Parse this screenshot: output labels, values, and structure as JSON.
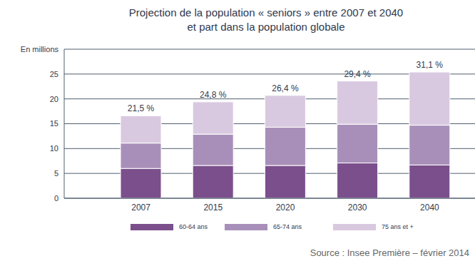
{
  "chart_data": {
    "type": "bar",
    "title": "Projection de la population « seniors » entre 2007 et 2040\net part dans la population globale",
    "categories": [
      "2007",
      "2015",
      "2020",
      "2030",
      "2040"
    ],
    "series": [
      {
        "name": "60-64 ans",
        "color": "#7b4f8c",
        "values": [
          6.0,
          6.6,
          6.6,
          7.1,
          6.7
        ]
      },
      {
        "name": "65-74 ans",
        "color": "#a88fb9",
        "values": [
          5.1,
          6.3,
          7.7,
          7.8,
          8.0
        ]
      },
      {
        "name": "75 ans et +",
        "color": "#d9c9e0",
        "values": [
          5.5,
          6.5,
          6.4,
          8.7,
          10.7
        ]
      }
    ],
    "annotations": [
      "21,5 %",
      "24,8 %",
      "26,4 %",
      "29,4 %",
      "31,1 %"
    ],
    "stacked": true,
    "ylim": [
      0,
      30
    ],
    "yticks": [
      0,
      5,
      10,
      15,
      20,
      25,
      {
        "value": 30,
        "label": "En millions"
      }
    ],
    "grid": true,
    "legend": "bottom",
    "source": "Source : Insee Première – février 2014"
  }
}
